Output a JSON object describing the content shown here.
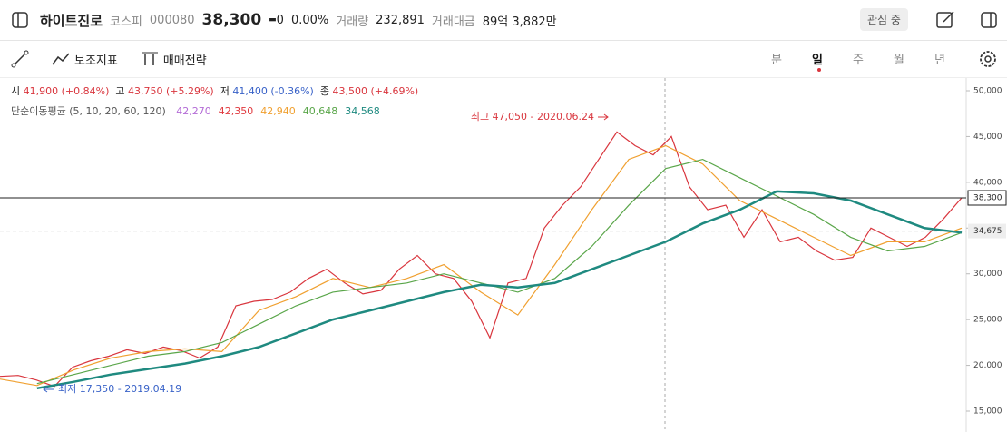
{
  "header": {
    "name": "하이트진로",
    "market": "코스피",
    "code": "000080",
    "price": "38,300",
    "change_mark": "▬",
    "change": "0",
    "change_pct": "0.00%",
    "volume_label": "거래량",
    "volume": "232,891",
    "amount_label": "거래대금",
    "amount": "89억 3,882만",
    "watch_button": "관심 중"
  },
  "toolbar": {
    "indicator": "보조지표",
    "strategy": "매매전략",
    "periods": [
      "분",
      "일",
      "주",
      "월",
      "년"
    ],
    "active_period": 1
  },
  "info": {
    "open_label": "시",
    "open": "41,900 (+0.84%)",
    "high_label": "고",
    "high": "43,750 (+5.29%)",
    "low_label": "저",
    "low": "41,400 (-0.36%)",
    "close_label": "종",
    "close": "43,500 (+4.69%)"
  },
  "chart_data": {
    "type": "line",
    "legend_title": "단순이동평균 (5, 10, 20, 60, 120)",
    "ylim": [
      12720,
      51388
    ],
    "yticks": [
      {
        "value": 15000,
        "label": "15,000"
      },
      {
        "value": 20000,
        "label": "20,000"
      },
      {
        "value": 25000,
        "label": "25,000"
      },
      {
        "value": 30000,
        "label": "30,000"
      },
      {
        "value": 35000,
        "label": "35,000"
      },
      {
        "value": 40000,
        "label": "40,000"
      },
      {
        "value": 45000,
        "label": "45,000"
      },
      {
        "value": 50000,
        "label": "50,000"
      }
    ],
    "price_color": "#d9363e",
    "price_values": [
      18800,
      18900,
      18400,
      17700,
      19800,
      20500,
      21000,
      21700,
      21300,
      22000,
      21600,
      20800,
      22000,
      26500,
      27000,
      27200,
      28000,
      29500,
      30500,
      29000,
      27800,
      28200,
      30500,
      32000,
      30000,
      29500,
      27000,
      23000,
      29000,
      29500,
      35000,
      37500,
      39500,
      42500,
      45500,
      44000,
      43000,
      45000,
      39500,
      37000,
      37500,
      34000,
      37000,
      33500,
      34000,
      32500,
      31500,
      31800,
      35000,
      34000,
      33000,
      34000,
      36000,
      38300
    ],
    "series": [
      {
        "name": "5",
        "color": "#b36bd6",
        "last": "42,270"
      },
      {
        "name": "10",
        "color": "#e0393e",
        "last": "42,350"
      },
      {
        "name": "20",
        "color": "#f0a030",
        "last": "42,940",
        "values": [
          18500,
          17800,
          19500,
          20800,
          21500,
          21800,
          21500,
          26000,
          27500,
          29500,
          28500,
          29500,
          31000,
          28000,
          25500,
          31000,
          37000,
          42500,
          44000,
          42000,
          38000,
          36000,
          34000,
          32000,
          33500,
          33500,
          35000
        ]
      },
      {
        "name": "60",
        "color": "#5aa64a",
        "last": "40,648",
        "values": [
          null,
          18000,
          19000,
          20000,
          21000,
          21500,
          22500,
          24500,
          26500,
          28000,
          28500,
          29000,
          30000,
          29000,
          28000,
          29500,
          33000,
          37500,
          41500,
          42500,
          40500,
          38500,
          36500,
          34000,
          32500,
          33000,
          34500
        ]
      },
      {
        "name": "120",
        "color": "#1f8a80",
        "last": "34,568",
        "values": [
          null,
          17500,
          18200,
          19000,
          19600,
          20200,
          21000,
          22000,
          23500,
          25000,
          26000,
          27000,
          28000,
          28800,
          28500,
          29000,
          30500,
          32000,
          33500,
          35500,
          37000,
          39000,
          38800,
          38000,
          36500,
          35000,
          34500
        ]
      }
    ],
    "current": {
      "value": 38300,
      "label": "38,300"
    },
    "reference": {
      "value": 34675,
      "label": "34,675"
    },
    "high_note": "최고 47,050 - 2020.06.24",
    "low_note": "최저 17,350 - 2019.04.19"
  }
}
